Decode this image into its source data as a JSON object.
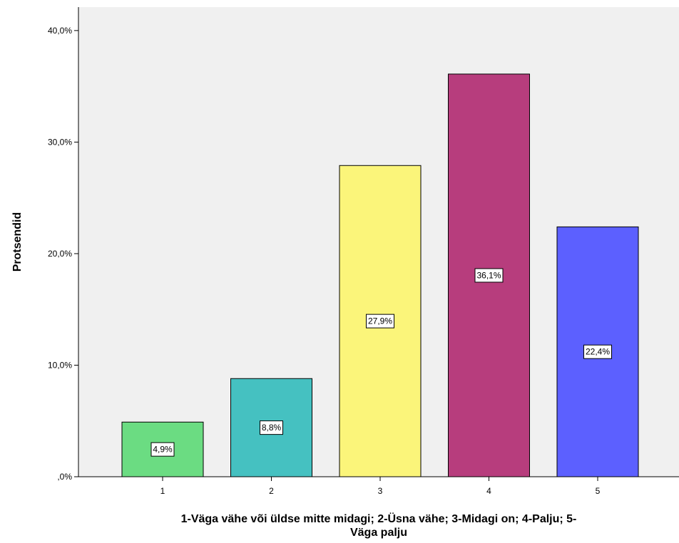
{
  "chart_data": {
    "type": "bar",
    "categories": [
      "1",
      "2",
      "3",
      "4",
      "5"
    ],
    "values": [
      4.9,
      8.8,
      27.9,
      36.1,
      22.4
    ],
    "data_labels": [
      "4,9%",
      "8,8%",
      "27,9%",
      "36,1%",
      "22,4%"
    ],
    "colors": [
      "#6bdc82",
      "#45c1c1",
      "#fbf57a",
      "#b73d7d",
      "#5c60ff"
    ],
    "ylabel": "Protsendid",
    "xlabel_lines": [
      "1-Väga vähe või üldse mitte midagi; 2-Üsna vähe; 3-Midagi on; 4-Palju; 5-",
      "Väga palju"
    ],
    "yticks": [
      0,
      10,
      20,
      30,
      40
    ],
    "ytick_labels": [
      ",0%",
      "10,0%",
      "20,0%",
      "30,0%",
      "40,0%"
    ],
    "ylim": [
      0,
      42.1
    ],
    "grid": false,
    "plot_background": "#f0f0f0"
  }
}
